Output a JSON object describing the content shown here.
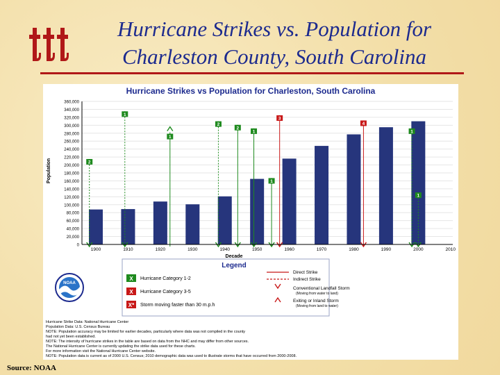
{
  "slide": {
    "title_line1": "Hurricane Strikes vs. Population for",
    "title_line2": "Charleston County, South Carolina",
    "source": "Source: NOAA",
    "colors": {
      "title": "#1c2a8e",
      "rule": "#b01818",
      "bar": "#26357c",
      "green": "#1e8a1e",
      "red": "#c81818"
    }
  },
  "chart_data": {
    "type": "bar",
    "title": "Hurricane Strikes vs Population for Charleston, South Carolina",
    "xlabel": "Decade",
    "ylabel": "Population",
    "ylim": [
      0,
      360000
    ],
    "yticks": [
      0,
      20000,
      40000,
      60000,
      80000,
      100000,
      120000,
      140000,
      160000,
      180000,
      200000,
      220000,
      240000,
      260000,
      280000,
      300000,
      320000,
      340000,
      360000
    ],
    "ytick_labels": [
      "0",
      "20,000",
      "40,000",
      "60,000",
      "80,000",
      "100,000",
      "120,000",
      "140,000",
      "160,000",
      "180,000",
      "200,000",
      "220,000",
      "240,000",
      "260,000",
      "280,000",
      "300,000",
      "320,000",
      "340,000",
      "360,000"
    ],
    "categories": [
      "1900",
      "1910",
      "1920",
      "1930",
      "1940",
      "1950",
      "1960",
      "1970",
      "1980",
      "1990",
      "2000",
      "2010"
    ],
    "values": [
      88000,
      89000,
      108000,
      101000,
      121000,
      165000,
      216000,
      248000,
      277000,
      295000,
      310000,
      null
    ],
    "storms": [
      {
        "decade": "1900",
        "pos": 0.3,
        "category": "2",
        "type": "indirect",
        "population_level": 215000
      },
      {
        "decade": "1910",
        "pos": 0.4,
        "category": "1",
        "type": "indirect",
        "population_level": 335000
      },
      {
        "decade": "1920",
        "pos": 0.8,
        "category": "1",
        "type": "exiting",
        "population_level": 296000
      },
      {
        "decade": "1940",
        "pos": 0.3,
        "category": "2",
        "type": "indirect",
        "population_level": 310000
      },
      {
        "decade": "1940",
        "pos": 0.9,
        "category": "2",
        "type": "direct",
        "population_level": 301000
      },
      {
        "decade": "1950",
        "pos": 0.4,
        "category": "1",
        "type": "direct",
        "population_level": 292000
      },
      {
        "decade": "1950",
        "pos": 0.95,
        "category": "1",
        "type": "direct",
        "population_level": 167000
      },
      {
        "decade": "1950",
        "pos": 1.2,
        "category": "3",
        "type": "direct",
        "population_level": 325000
      },
      {
        "decade": "1980",
        "pos": 0.8,
        "category": "4",
        "type": "direct",
        "population_level": 312000
      },
      {
        "decade": "2000",
        "pos": 0.3,
        "category": "1",
        "type": "indirect",
        "population_level": 292000
      },
      {
        "decade": "2000",
        "pos": 0.5,
        "category": "1",
        "type": "indirect",
        "population_level": 131000
      }
    ],
    "legend": {
      "title": "Legend",
      "items": [
        {
          "label": "Hurricane Category 1-2",
          "color": "#1e8a1e",
          "marker": "X"
        },
        {
          "label": "Hurricane Category 3-5",
          "color": "#c81818",
          "marker": "X"
        },
        {
          "label": "Storm moving faster than 30 m.p.h",
          "color": "#c81818",
          "marker": "X*"
        }
      ],
      "lines": [
        {
          "label": "Direct Strike",
          "style": "solid"
        },
        {
          "label": "Indirect Strike",
          "style": "dashed"
        },
        {
          "label": "Conventional Landfall Storm",
          "sub": "(Moving from water to land)",
          "marker": "down"
        },
        {
          "label": "Exiting or Inland Storm",
          "sub": "(Moving from land to water)",
          "marker": "up"
        }
      ]
    },
    "notes": [
      "Hurricane Strike Data: National Hurricane Center",
      "Population Data: U.S. Census Bureau",
      "NOTE: Population accuracy may be limited for earlier decades, particularly where data was not compiled in the county",
      "had not yet been established.",
      "NOTE: The intensity of hurricane strikes in the table are based on data from the NHC and may differ from other sources.",
      "The National Hurricane Center is currently updating the strike data used for these charts.",
      "For more information visit the National Hurricane Center website.",
      "NOTE: Population data is current as of 2000 U.S. Census; 2010 demographic data was used to illustrate storms that have occurred from 2000-2008."
    ],
    "logo_text": "NOAA"
  }
}
